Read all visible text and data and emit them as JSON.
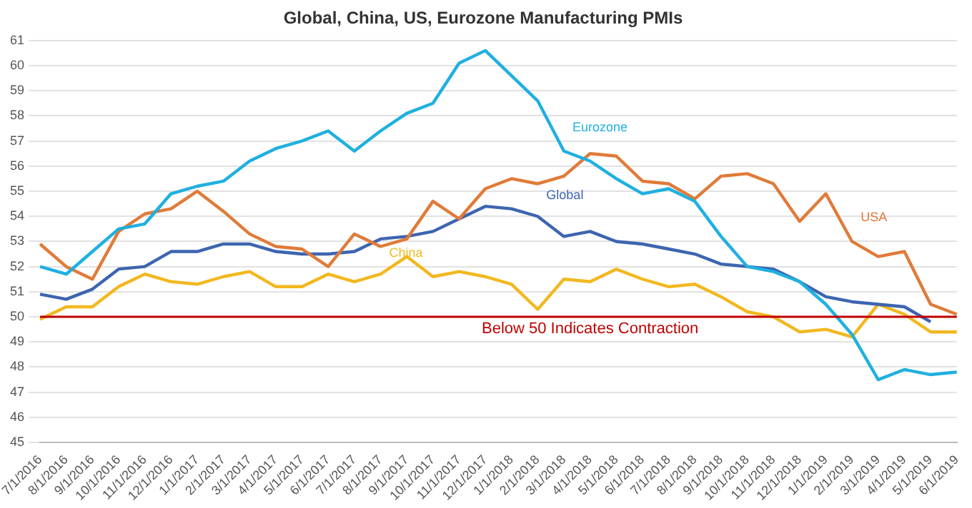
{
  "chart_data": {
    "type": "line",
    "title": "Global, China, US, Eurozone Manufacturing PMIs",
    "categories": [
      "7/1/2016",
      "8/1/2016",
      "9/1/2016",
      "10/1/2016",
      "11/1/2016",
      "12/1/2016",
      "1/1/2017",
      "2/1/2017",
      "3/1/2017",
      "4/1/2017",
      "5/1/2017",
      "6/1/2017",
      "7/1/2017",
      "8/1/2017",
      "9/1/2017",
      "10/1/2017",
      "11/1/2017",
      "12/1/2017",
      "1/1/2018",
      "2/1/2018",
      "3/1/2018",
      "4/1/2018",
      "5/1/2018",
      "6/1/2018",
      "7/1/2018",
      "8/1/2018",
      "9/1/2018",
      "10/1/2018",
      "11/1/2018",
      "12/1/2018",
      "1/1/2019",
      "2/1/2019",
      "3/1/2019",
      "4/1/2019",
      "5/1/2019",
      "6/1/2019"
    ],
    "series": [
      {
        "name": "Eurozone",
        "color": "#1fb0e0",
        "values": [
          52.0,
          51.7,
          52.6,
          53.5,
          53.7,
          54.9,
          55.2,
          55.4,
          56.2,
          56.7,
          57.0,
          57.4,
          56.6,
          57.4,
          58.1,
          58.5,
          60.1,
          60.6,
          59.6,
          58.6,
          56.6,
          56.2,
          55.5,
          54.9,
          55.1,
          54.6,
          53.2,
          52.0,
          51.8,
          51.4,
          50.5,
          49.3,
          47.5,
          47.9,
          47.7,
          47.8
        ]
      },
      {
        "name": "USA",
        "color": "#e07b39",
        "values": [
          52.9,
          52.0,
          51.5,
          53.4,
          54.1,
          54.3,
          55.0,
          54.2,
          53.3,
          52.8,
          52.7,
          52.0,
          53.3,
          52.8,
          53.1,
          54.6,
          53.9,
          55.1,
          55.5,
          55.3,
          55.6,
          56.5,
          56.4,
          55.4,
          55.3,
          54.7,
          55.6,
          55.7,
          55.3,
          53.8,
          54.9,
          53.0,
          52.4,
          52.6,
          50.5,
          50.1
        ]
      },
      {
        "name": "Global",
        "color": "#3d65b0",
        "values": [
          50.9,
          50.7,
          51.1,
          51.9,
          52.0,
          52.6,
          52.6,
          52.9,
          52.9,
          52.6,
          52.5,
          52.5,
          52.6,
          53.1,
          53.2,
          53.4,
          53.9,
          54.4,
          54.3,
          54.0,
          53.2,
          53.4,
          53.0,
          52.9,
          52.7,
          52.5,
          52.1,
          52.0,
          51.9,
          51.4,
          50.8,
          50.6,
          50.5,
          50.4,
          49.8,
          null
        ]
      },
      {
        "name": "China",
        "color": "#f2b81f",
        "values": [
          49.9,
          50.4,
          50.4,
          51.2,
          51.7,
          51.4,
          51.3,
          51.6,
          51.8,
          51.2,
          51.2,
          51.7,
          51.4,
          51.7,
          52.4,
          51.6,
          51.8,
          51.6,
          51.3,
          50.3,
          51.5,
          51.4,
          51.9,
          51.5,
          51.2,
          51.3,
          50.8,
          50.2,
          50.0,
          49.4,
          49.5,
          49.2,
          50.5,
          50.1,
          49.4,
          49.4
        ]
      }
    ],
    "ylim": [
      45,
      61
    ],
    "yticks": [
      45,
      46,
      47,
      48,
      49,
      50,
      51,
      52,
      53,
      54,
      55,
      56,
      57,
      58,
      59,
      60,
      61
    ],
    "grid": "y",
    "legend": false,
    "marker": "none",
    "line_style": "solid",
    "ref_lines": [
      {
        "axis": "y",
        "value": 50,
        "label": "Below 50 Indicates Contraction",
        "color": "#c00000"
      }
    ]
  }
}
